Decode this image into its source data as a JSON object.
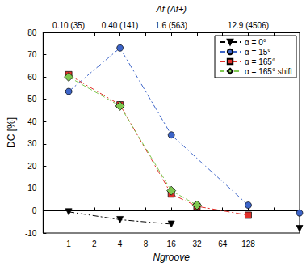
{
  "chart_data": {
    "type": "line",
    "x_label": "Ngroove",
    "y_label": "DC [%]",
    "top_axis_label": "Λf (Λf+)",
    "log": "x",
    "grid": false,
    "legend": "upper right",
    "xlim": [
      0.5,
      512
    ],
    "xticks": [
      1,
      2,
      4,
      8,
      16,
      32,
      64,
      128
    ],
    "top_ticks": [
      {
        "value": 1,
        "label": "0.10 (35)"
      },
      {
        "value": 4,
        "label": "0.40 (141)"
      },
      {
        "value": 16,
        "label": "1.6 (563)"
      },
      {
        "value": 128,
        "label": "12.9 (4506)"
      }
    ],
    "ylim": [
      -10,
      80
    ],
    "yticks": [
      -10,
      0,
      10,
      20,
      30,
      40,
      50,
      60,
      70,
      80
    ],
    "series": [
      {
        "name": "α = 0°",
        "color": "#000000",
        "marker": "triangle-down",
        "line_style": "dashdot",
        "x": [
          1,
          4,
          16,
          128,
          512
        ],
        "values": [
          -0.5,
          -4,
          -6,
          null,
          -8
        ]
      },
      {
        "name": "α = 15°",
        "color": "#3c64c8",
        "marker": "circle",
        "line_style": "dashdot",
        "x": [
          1,
          4,
          16,
          128,
          256,
          512
        ],
        "values": [
          53.5,
          73,
          34,
          2.5,
          null,
          -1
        ]
      },
      {
        "name": "α = 165°",
        "color": "#e0302a",
        "marker": "square",
        "line_style": "dashdot",
        "x": [
          1,
          4,
          16,
          32,
          128
        ],
        "values": [
          61,
          47.5,
          7.5,
          2,
          -2
        ]
      },
      {
        "name": "α = 165° shift",
        "color": "#7ec850",
        "marker": "diamond",
        "line_style": "dashed",
        "x": [
          1,
          4,
          16,
          32
        ],
        "values": [
          60,
          47,
          9,
          2.5
        ]
      }
    ]
  }
}
